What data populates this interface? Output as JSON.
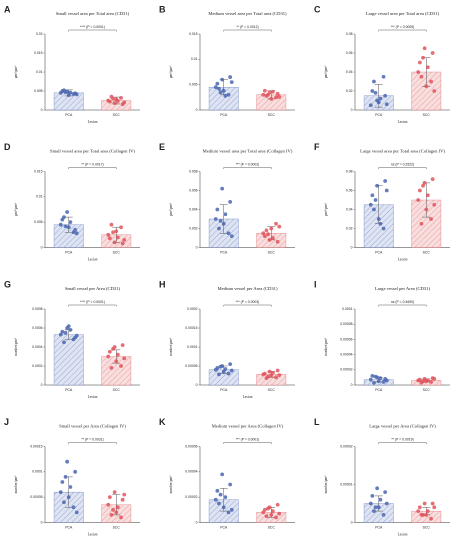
{
  "chart_data": [
    {
      "type": "bar",
      "letter": "A",
      "title": "Small vessel area per Total area (CD31)",
      "annotation": "**** (P < 0.0001)",
      "ylabel": "μm²/μm²",
      "xlabel": "Lesion",
      "categories": [
        "PCA",
        "SCC"
      ],
      "colors": [
        "#4a66b0",
        "#e0545a"
      ],
      "ylim": [
        0,
        0.02
      ],
      "yticks": [
        0,
        0.005,
        0.01,
        0.015,
        0.02
      ],
      "values": [
        0.0045,
        0.0025
      ],
      "errors": [
        0.0008,
        0.0009
      ],
      "points": [
        [
          0.0045,
          0.0048,
          0.0042,
          0.005,
          0.0039,
          0.0044,
          0.0052,
          0.0046,
          0.0041,
          0.0047
        ],
        [
          0.0025,
          0.0018,
          0.0032,
          0.0022,
          0.0028,
          0.0015,
          0.0035,
          0.0024,
          0.002,
          0.003
        ]
      ]
    },
    {
      "type": "bar",
      "letter": "B",
      "title": "Medium vessel area per Total area (CD31)",
      "annotation": "** (P = 0.0012)",
      "ylabel": "μm²/μm²",
      "categories": [
        "PCA",
        "SCC"
      ],
      "colors": [
        "#4a66b0",
        "#e0545a"
      ],
      "ylim": [
        0,
        0.015
      ],
      "yticks": [
        0,
        0.005,
        0.01,
        0.015
      ],
      "values": [
        0.0045,
        0.003
      ],
      "errors": [
        0.0015,
        0.0008
      ],
      "points": [
        [
          0.0045,
          0.006,
          0.003,
          0.0052,
          0.0038,
          0.0065,
          0.0042,
          0.0028,
          0.0055,
          0.0035
        ],
        [
          0.003,
          0.0035,
          0.0025,
          0.0038,
          0.0022,
          0.0032,
          0.0028,
          0.0036,
          0.0026,
          0.003
        ]
      ]
    },
    {
      "type": "bar",
      "letter": "C",
      "title": "Large vessel area per Total area (CD31)",
      "annotation": "*** (P = 0.0005)",
      "ylabel": "μm²/μm²",
      "xlabel": "Lesion",
      "categories": [
        "PCA",
        "SCC"
      ],
      "colors": [
        "#4a66b0",
        "#e0545a"
      ],
      "ylim": [
        0,
        0.08
      ],
      "yticks": [
        0,
        0.02,
        0.04,
        0.06,
        0.08
      ],
      "values": [
        0.015,
        0.04
      ],
      "errors": [
        0.012,
        0.015
      ],
      "points": [
        [
          0.005,
          0.01,
          0.035,
          0.02,
          0.008,
          0.015,
          0.03,
          0.012,
          0.006,
          0.018
        ],
        [
          0.04,
          0.065,
          0.03,
          0.05,
          0.025,
          0.06,
          0.035,
          0.045,
          0.02,
          0.055
        ]
      ]
    },
    {
      "type": "bar",
      "letter": "D",
      "title": "Small vessel area per Total area (Collagen IV)",
      "annotation": "** (P = 0.0017)",
      "ylabel": "μm²/μm²",
      "xlabel": "Lesion",
      "categories": [
        "PCA",
        "SCC"
      ],
      "colors": [
        "#4a66b0",
        "#e0545a"
      ],
      "ylim": [
        0,
        0.015
      ],
      "yticks": [
        0,
        0.005,
        0.01,
        0.015
      ],
      "values": [
        0.0045,
        0.0025
      ],
      "errors": [
        0.0015,
        0.0015
      ],
      "points": [
        [
          0.0045,
          0.007,
          0.003,
          0.0055,
          0.004,
          0.0035,
          0.006,
          0.005,
          0.0028,
          0.0042
        ],
        [
          0.0025,
          0.001,
          0.004,
          0.0018,
          0.0032,
          0.0008,
          0.0045,
          0.002,
          0.0015,
          0.003
        ]
      ]
    },
    {
      "type": "bar",
      "letter": "E",
      "title": "Medium vessel area per Total area (Collagen IV)",
      "annotation": "*** (P = 0.0002)",
      "ylabel": "μm²/μm²",
      "categories": [
        "PCA",
        "SCC"
      ],
      "colors": [
        "#4a66b0",
        "#e0545a"
      ],
      "ylim": [
        0,
        0.008
      ],
      "yticks": [
        0,
        0.002,
        0.004,
        0.006,
        0.008
      ],
      "values": [
        0.003,
        0.0015
      ],
      "errors": [
        0.0015,
        0.0007
      ],
      "points": [
        [
          0.003,
          0.0062,
          0.0015,
          0.004,
          0.0025,
          0.0048,
          0.002,
          0.0035,
          0.0012,
          0.0028
        ],
        [
          0.0015,
          0.0008,
          0.0025,
          0.0012,
          0.002,
          0.0006,
          0.0018,
          0.001,
          0.0022,
          0.0014
        ]
      ]
    },
    {
      "type": "bar",
      "letter": "F",
      "title": "Large vessel area per Total area (Collagen IV)",
      "annotation": "ns (P = 0.2522)",
      "ylabel": "μm²/μm²",
      "xlabel": "Lesion",
      "categories": [
        "PCA",
        "SCC"
      ],
      "colors": [
        "#4a66b0",
        "#e0545a"
      ],
      "ylim": [
        0,
        0.08
      ],
      "yticks": [
        0,
        0.02,
        0.04,
        0.06,
        0.08
      ],
      "values": [
        0.045,
        0.05
      ],
      "errors": [
        0.02,
        0.018
      ],
      "points": [
        [
          0.045,
          0.065,
          0.02,
          0.055,
          0.03,
          0.07,
          0.04,
          0.025,
          0.06,
          0.05
        ],
        [
          0.05,
          0.068,
          0.03,
          0.06,
          0.04,
          0.072,
          0.025,
          0.055,
          0.045,
          0.065
        ]
      ]
    },
    {
      "type": "bar",
      "letter": "G",
      "title": "Small vessel per Area (CD31)",
      "annotation": "**** (P < 0.0001)",
      "ylabel": "number/μm²",
      "xlabel": "Lesion",
      "categories": [
        "PCA",
        "SCC"
      ],
      "colors": [
        "#4a66b0",
        "#e0545a"
      ],
      "ylim": [
        0,
        0.0008
      ],
      "yticks": [
        0,
        0.0002,
        0.0004,
        0.0006,
        0.0008
      ],
      "values": [
        0.00053,
        0.0003
      ],
      "errors": [
        5e-05,
        7e-05
      ],
      "points": [
        [
          0.00053,
          0.0006,
          0.00048,
          0.00056,
          0.00062,
          0.0005,
          0.00045,
          0.00058,
          0.00052,
          0.00055
        ],
        [
          0.0003,
          0.0004,
          0.0002,
          0.00035,
          0.00025,
          0.00042,
          0.00018,
          0.00032,
          0.00028,
          0.00038
        ]
      ]
    },
    {
      "type": "bar",
      "letter": "H",
      "title": "Medium vessel per Area (CD31)",
      "annotation": "*** (P = 0.0003)",
      "ylabel": "number/μm²",
      "xlabel": "Lesion",
      "categories": [
        "PCA",
        "SCC"
      ],
      "colors": [
        "#4a66b0",
        "#e0545a"
      ],
      "ylim": [
        0,
        0.0002
      ],
      "yticks": [
        0,
        5e-05,
        0.0001,
        0.00015,
        0.0002
      ],
      "values": [
        4e-05,
        2.8e-05
      ],
      "errors": [
        1e-05,
        8e-06
      ],
      "points": [
        [
          4e-05,
          5e-05,
          3e-05,
          4.5e-05,
          3.5e-05,
          5.5e-05,
          2.8e-05,
          4.2e-05,
          3.8e-05,
          4.8e-05
        ],
        [
          2.8e-05,
          3.5e-05,
          2e-05,
          3e-05,
          2.5e-05,
          3.8e-05,
          1.8e-05,
          3.2e-05,
          2.6e-05,
          2.2e-05
        ]
      ]
    },
    {
      "type": "bar",
      "letter": "I",
      "title": "Large vessel per Area (CD31)",
      "annotation": "ns (P = 0.4690)",
      "ylabel": "number/μm²",
      "categories": [
        "PCA",
        "SCC"
      ],
      "colors": [
        "#4a66b0",
        "#e0545a"
      ],
      "ylim": [
        0,
        0.0001
      ],
      "yticks": [
        0,
        2e-05,
        4e-05,
        6e-05,
        8e-05,
        0.0001
      ],
      "values": [
        7e-06,
        6e-06
      ],
      "errors": [
        3e-06,
        2e-06
      ],
      "points": [
        [
          7e-06,
          1e-05,
          4e-06,
          1.2e-05,
          5e-06,
          8e-06,
          3e-06,
          9e-06,
          6e-06,
          1.1e-05
        ],
        [
          6e-06,
          8e-06,
          4e-06,
          7e-06,
          5e-06,
          9e-06,
          3e-06,
          6e-06,
          8e-06,
          5e-06
        ]
      ]
    },
    {
      "type": "bar",
      "letter": "J",
      "title": "Small vessel per Area (Collagen IV)",
      "annotation": "** (P = 0.0031)",
      "ylabel": "number/μm²",
      "xlabel": "Lesion",
      "categories": [
        "PCA",
        "SCC"
      ],
      "colors": [
        "#4a66b0",
        "#e0545a"
      ],
      "ylim": [
        0,
        0.00015
      ],
      "yticks": [
        0,
        5e-05,
        0.0001,
        0.00015
      ],
      "values": [
        6e-05,
        3.5e-05
      ],
      "errors": [
        3e-05,
        2e-05
      ],
      "points": [
        [
          6e-05,
          0.00012,
          3e-05,
          8e-05,
          5e-05,
          0.0001,
          4e-05,
          7e-05,
          2e-05,
          9e-05
        ],
        [
          3.5e-05,
          6e-05,
          1e-05,
          5e-05,
          2e-05,
          4.5e-05,
          1.5e-05,
          3e-05,
          5.5e-05,
          2.5e-05
        ]
      ]
    },
    {
      "type": "bar",
      "letter": "K",
      "title": "Medium vessel per Area (Collagen IV)",
      "annotation": "*** (P = 0.0001)",
      "ylabel": "number/μm²",
      "categories": [
        "PCA",
        "SCC"
      ],
      "colors": [
        "#4a66b0",
        "#e0545a"
      ],
      "ylim": [
        0,
        6e-05
      ],
      "yticks": [
        0,
        2e-05,
        4e-05,
        6e-05
      ],
      "values": [
        1.8e-05,
        8e-06
      ],
      "errors": [
        9e-06,
        4e-06
      ],
      "points": [
        [
          1.8e-05,
          3.8e-05,
          8e-06,
          2.5e-05,
          1.2e-05,
          3e-05,
          1.5e-05,
          2e-05,
          1e-05,
          2.2e-05
        ],
        [
          8e-06,
          1.2e-05,
          4e-06,
          1e-05,
          6e-06,
          1.4e-05,
          5e-06,
          9e-06,
          7e-06,
          1.1e-05
        ]
      ]
    },
    {
      "type": "bar",
      "letter": "L",
      "title": "Large vessel per Area (Collagen IV)",
      "annotation": "** (P = 0.0019)",
      "ylabel": "number/μm²",
      "xlabel": "Lesion",
      "categories": [
        "PCA",
        "SCC"
      ],
      "colors": [
        "#4a66b0",
        "#e0545a"
      ],
      "ylim": [
        0,
        2e-05
      ],
      "yticks": [
        0,
        1e-05,
        2e-05
      ],
      "values": [
        5e-06,
        3e-06
      ],
      "errors": [
        2e-06,
        1e-06
      ],
      "points": [
        [
          5e-06,
          9e-06,
          2e-06,
          7e-06,
          4e-06,
          8e-06,
          3e-06,
          6e-06,
          5e-06,
          4e-06
        ],
        [
          3e-06,
          5e-06,
          1e-06,
          4e-06,
          2e-06,
          5e-06,
          2e-06,
          3e-06,
          4e-06,
          2e-06
        ]
      ]
    }
  ]
}
